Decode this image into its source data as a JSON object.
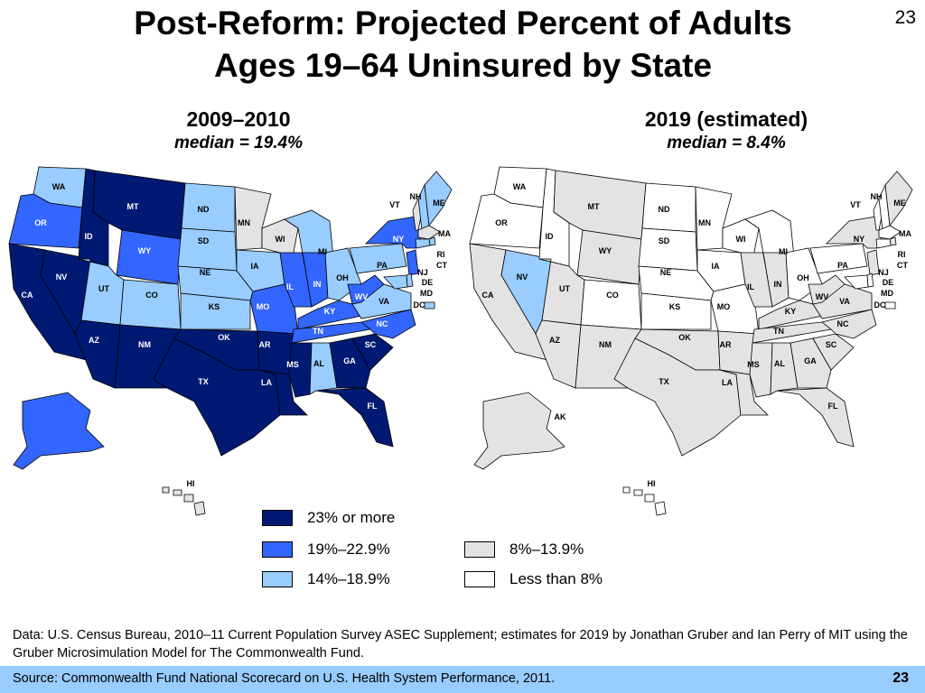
{
  "slide": {
    "number_top": "23",
    "title_line1": "Post-Reform: Projected Percent of Adults",
    "title_line2": "Ages 19–64 Uninsured by State",
    "data_note": "Data: U.S. Census Bureau, 2010–11 Current Population Survey ASEC Supplement; estimates for 2019 by Jonathan Gruber and Ian Perry of MIT using the Gruber Microsimulation Model for The Commonwealth Fund.",
    "source": "Source: Commonwealth Fund National Scorecard on U.S. Health System Performance, 2011.",
    "number_bottom": "23"
  },
  "maps": [
    {
      "year": "2009–2010",
      "median": "median = 19.4%"
    },
    {
      "year": "2019 (estimated)",
      "median": "median = 8.4%"
    }
  ],
  "legend": [
    {
      "label": "23% or more",
      "color": "#001a73"
    },
    {
      "label": "19%–22.9%",
      "color": "#3366ff"
    },
    {
      "label": "14%–18.9%",
      "color": "#99ccff"
    },
    {
      "label": "8%–13.9%",
      "color": "#e3e3e3"
    },
    {
      "label": "Less than 8%",
      "color": "#ffffff"
    }
  ],
  "map_data": {
    "categories": [
      "23% or more",
      "19%–22.9%",
      "14%–18.9%",
      "8%–13.9%",
      "Less than 8%"
    ],
    "left_2009_2010": {
      "WA": 2,
      "OR": 1,
      "CA": 0,
      "NV": 0,
      "ID": 0,
      "MT": 0,
      "WY": 1,
      "UT": 2,
      "CO": 2,
      "AZ": 0,
      "NM": 0,
      "ND": 2,
      "SD": 2,
      "NE": 2,
      "KS": 2,
      "OK": 0,
      "TX": 0,
      "MN": 3,
      "IA": 2,
      "MO": 1,
      "AR": 0,
      "LA": 0,
      "WI": 3,
      "IL": 1,
      "MI": 2,
      "IN": 1,
      "OH": 2,
      "KY": 1,
      "TN": 1,
      "MS": 0,
      "AL": 2,
      "GA": 0,
      "FL": 0,
      "SC": 0,
      "NC": 1,
      "VA": 2,
      "WV": 1,
      "PA": 2,
      "NY": 1,
      "VT": 3,
      "NH": 2,
      "ME": 2,
      "MA": 3,
      "RI": 2,
      "CT": 2,
      "NJ": 1,
      "DE": 2,
      "MD": 2,
      "DC": 2,
      "AK": 1,
      "HI": 3
    },
    "right_2019": {
      "WA": 4,
      "OR": 4,
      "CA": 3,
      "NV": 2,
      "ID": 4,
      "MT": 3,
      "WY": 3,
      "UT": 3,
      "CO": 4,
      "AZ": 3,
      "NM": 3,
      "ND": 4,
      "SD": 4,
      "NE": 4,
      "KS": 4,
      "OK": 3,
      "TX": 3,
      "MN": 4,
      "IA": 4,
      "MO": 4,
      "AR": 3,
      "LA": 3,
      "WI": 4,
      "IL": 3,
      "MI": 4,
      "IN": 3,
      "OH": 4,
      "KY": 3,
      "TN": 3,
      "MS": 3,
      "AL": 3,
      "GA": 3,
      "FL": 3,
      "SC": 3,
      "NC": 3,
      "VA": 3,
      "WV": 3,
      "PA": 4,
      "NY": 3,
      "VT": 4,
      "NH": 4,
      "ME": 3,
      "MA": 4,
      "RI": 3,
      "CT": 4,
      "NJ": 3,
      "DE": 4,
      "MD": 4,
      "DC": 4,
      "AK": 3,
      "HI": 4
    }
  }
}
